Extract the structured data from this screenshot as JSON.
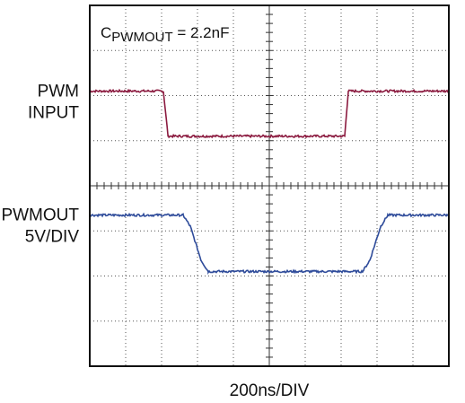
{
  "chart_data": {
    "type": "line",
    "title": "",
    "xlabel": "200ns/DIV",
    "ylabel": "",
    "grid": true,
    "divisions": {
      "x": 10,
      "y": 8
    },
    "xlim": [
      0,
      10
    ],
    "annotation": {
      "prefix": "C",
      "subscript": "PWMOUT",
      "suffix": " = 2.2nF"
    },
    "channel_labels": [
      {
        "lines": [
          "PWM",
          "INPUT"
        ]
      },
      {
        "lines": [
          "PWMOUT",
          "5V/DIV"
        ]
      }
    ],
    "series": [
      {
        "name": "PWM INPUT",
        "color": "#8b1a3f",
        "x": [
          0,
          2.05,
          2.18,
          7.1,
          7.2,
          10
        ],
        "y": [
          6.1,
          6.1,
          5.1,
          5.1,
          6.1,
          6.1
        ]
      },
      {
        "name": "PWMOUT",
        "color": "#2e4b9a",
        "x": [
          0,
          2.6,
          2.8,
          3.1,
          3.3,
          7.6,
          7.8,
          8.1,
          8.3,
          10
        ],
        "y": [
          3.35,
          3.35,
          3.1,
          2.35,
          2.1,
          2.1,
          2.35,
          3.1,
          3.35,
          3.35
        ]
      }
    ]
  }
}
